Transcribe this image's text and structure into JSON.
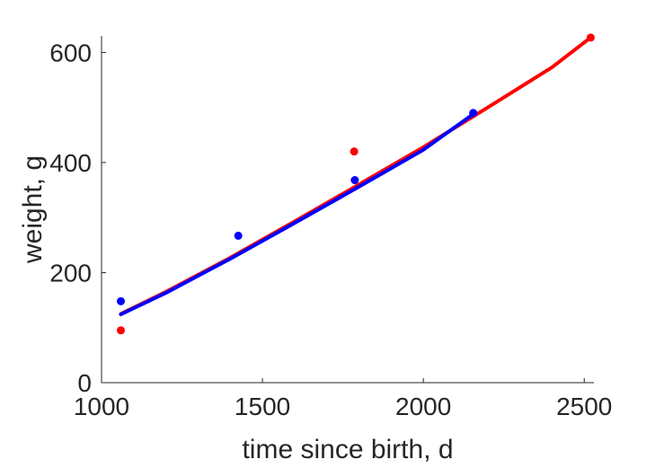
{
  "chart_data": {
    "type": "line",
    "title": "",
    "xlabel": "time since birth, d",
    "ylabel": "weight, g",
    "xlim": [
      1000,
      2530
    ],
    "ylim": [
      0,
      630
    ],
    "xticks": [
      1000,
      1500,
      2000,
      2500
    ],
    "yticks": [
      0,
      200,
      400,
      600
    ],
    "grid": false,
    "legend": "none",
    "series": [
      {
        "kind": "scatter",
        "color": "#ff0000",
        "x": [
          1060,
          1785,
          2520
        ],
        "y": [
          95,
          420,
          627
        ]
      },
      {
        "kind": "scatter",
        "color": "#0000ff",
        "x": [
          1060,
          1425,
          1787,
          2155
        ],
        "y": [
          148,
          267,
          368,
          490
        ]
      },
      {
        "kind": "line",
        "color": "#ff0000",
        "x": [
          1060,
          1200,
          1400,
          1600,
          1800,
          2000,
          2200,
          2400,
          2520
        ],
        "y": [
          125,
          165,
          227,
          293,
          360,
          428,
          500,
          573,
          627
        ]
      },
      {
        "kind": "line",
        "color": "#0000ff",
        "x": [
          1060,
          1200,
          1400,
          1600,
          1800,
          2000,
          2155
        ],
        "y": [
          124,
          163,
          225,
          290,
          356,
          423,
          488
        ]
      }
    ]
  }
}
